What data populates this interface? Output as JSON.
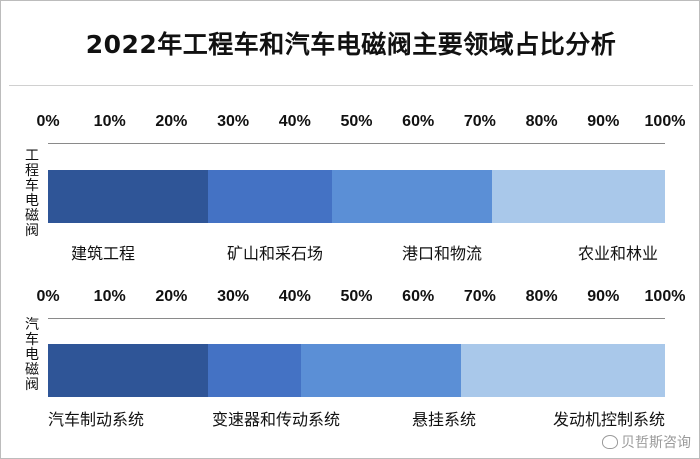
{
  "title": "2022年工程车和汽车电磁阀主要领域占比分析",
  "watermark": "贝哲斯咨询",
  "chart_data": [
    {
      "type": "bar",
      "orientation": "horizontal-stacked-100",
      "name": "工程车电磁阀",
      "name_vertical": [
        "工",
        "程",
        "车",
        "电",
        "磁",
        "阀"
      ],
      "categories": [
        "建筑工程",
        "矿山和采石场",
        "港口和物流",
        "农业和林业"
      ],
      "values": [
        26,
        20,
        26,
        28
      ],
      "xlim": [
        0,
        100
      ],
      "ticks": [
        "0%",
        "10%",
        "20%",
        "30%",
        "40%",
        "50%",
        "60%",
        "70%",
        "80%",
        "90%",
        "100%"
      ]
    },
    {
      "type": "bar",
      "orientation": "horizontal-stacked-100",
      "name": "汽车电磁阀",
      "name_vertical": [
        "汽",
        "车",
        "电",
        "磁",
        "阀"
      ],
      "categories": [
        "汽车制动系统",
        "变速器和传动系统",
        "悬挂系统",
        "发动机控制系统"
      ],
      "values": [
        26,
        15,
        26,
        33
      ],
      "xlim": [
        0,
        100
      ],
      "ticks": [
        "0%",
        "10%",
        "20%",
        "30%",
        "40%",
        "50%",
        "60%",
        "70%",
        "80%",
        "90%",
        "100%"
      ]
    }
  ],
  "colors": [
    "#2f5597",
    "#4472c4",
    "#5b8fd6",
    "#a9c8ea"
  ]
}
